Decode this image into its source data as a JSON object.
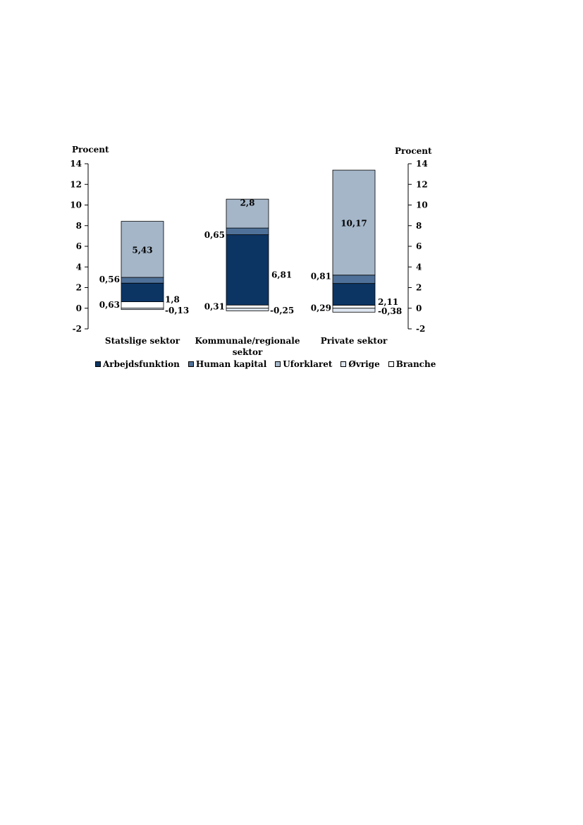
{
  "chart_data": {
    "type": "bar",
    "stacked": true,
    "y_unit_left": "Procent",
    "y_unit_right": "Procent",
    "ylim": [
      -2,
      14
    ],
    "yticks": [
      "14",
      "12",
      "10",
      "8",
      "6",
      "4",
      "2",
      "0",
      "-2"
    ],
    "ytick_values": [
      14,
      12,
      10,
      8,
      6,
      4,
      2,
      0,
      -2
    ],
    "categories": [
      [
        "Statslige sektor"
      ],
      [
        "Kommunale/regionale",
        "sektor"
      ],
      [
        "Private sektor"
      ]
    ],
    "series": [
      {
        "name": "Arbejdsfunktion",
        "color": "#0c3564",
        "values": [
          1.8,
          6.81,
          2.11
        ],
        "labels": [
          "1,8",
          "6,81",
          "2,11"
        ]
      },
      {
        "name": "Human kapital",
        "color": "#4f7199",
        "values": [
          0.56,
          0.65,
          0.81
        ],
        "labels": [
          "0,56",
          "0,65",
          "0,81"
        ]
      },
      {
        "name": "Uforklaret",
        "color": "#a5b6c9",
        "values": [
          5.43,
          2.8,
          10.17
        ],
        "labels": [
          "5,43",
          "2,8",
          "10,17"
        ]
      },
      {
        "name": "Øvrige",
        "color": "#dde6f1",
        "values": [
          -0.13,
          -0.25,
          -0.38
        ],
        "labels": [
          "-0,13",
          "-0,25",
          "-0,38"
        ]
      },
      {
        "name": "Branche",
        "color": "#ffffff",
        "values": [
          0.63,
          0.31,
          0.29
        ],
        "labels": [
          "0,63",
          "0,31",
          "0,29"
        ]
      }
    ],
    "legend_position": "bottom",
    "grid": false
  }
}
